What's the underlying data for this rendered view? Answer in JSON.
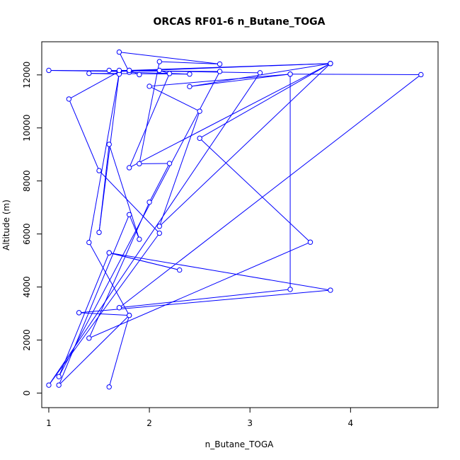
{
  "chart_data": {
    "type": "line",
    "title": "ORCAS RF01-6 n_Butane_TOGA",
    "xlabel": "n_Butane_TOGA",
    "ylabel": "Altitude (m)",
    "xlim": [
      0.93,
      4.87
    ],
    "ylim": [
      -550,
      13250
    ],
    "xticks": [
      1,
      2,
      3,
      4
    ],
    "yticks": [
      0,
      2000,
      4000,
      6000,
      8000,
      10000,
      12000
    ],
    "marker": "open-circle",
    "line_color": "#0000ff",
    "grid": false,
    "points": [
      [
        1.6,
        230
      ],
      [
        1.8,
        2930
      ],
      [
        1.1,
        300
      ],
      [
        1.8,
        6730
      ],
      [
        1.9,
        5800
      ],
      [
        1.6,
        9380
      ],
      [
        1.5,
        6060
      ],
      [
        1.7,
        12070
      ],
      [
        1.4,
        5680
      ],
      [
        1.8,
        2930
      ],
      [
        1.3,
        3030
      ],
      [
        3.8,
        3880
      ],
      [
        1.6,
        5290
      ],
      [
        2.3,
        4640
      ],
      [
        1.6,
        5290
      ],
      [
        1.1,
        620
      ],
      [
        2.7,
        12130
      ],
      [
        1.0,
        12170
      ],
      [
        1.7,
        12130
      ],
      [
        1.6,
        12170
      ],
      [
        3.1,
        12080
      ],
      [
        1.0,
        300
      ],
      [
        2.1,
        6030
      ],
      [
        1.5,
        8390
      ],
      [
        1.2,
        11090
      ],
      [
        1.7,
        12130
      ],
      [
        3.8,
        12430
      ],
      [
        2.5,
        9610
      ],
      [
        3.6,
        5690
      ],
      [
        1.4,
        2070
      ],
      [
        2.0,
        7200
      ],
      [
        2.2,
        8660
      ],
      [
        1.9,
        8650
      ],
      [
        2.1,
        12500
      ],
      [
        2.7,
        12410
      ],
      [
        1.7,
        12860
      ],
      [
        1.8,
        12100
      ],
      [
        2.4,
        12030
      ],
      [
        1.4,
        12060
      ],
      [
        1.7,
        12030
      ],
      [
        1.7,
        12170
      ],
      [
        1.8,
        12170
      ],
      [
        2.1,
        12170
      ],
      [
        2.2,
        12050
      ],
      [
        1.8,
        8500
      ],
      [
        3.8,
        12430
      ],
      [
        2.4,
        11560
      ],
      [
        3.4,
        12030
      ],
      [
        4.7,
        12010
      ],
      [
        1.7,
        3220
      ],
      [
        3.4,
        3910
      ],
      [
        3.4,
        12030
      ],
      [
        2.0,
        11570
      ],
      [
        2.5,
        10630
      ],
      [
        2.1,
        6290
      ],
      [
        3.8,
        12430
      ],
      [
        1.8,
        12170
      ],
      [
        1.9,
        12010
      ]
    ]
  }
}
